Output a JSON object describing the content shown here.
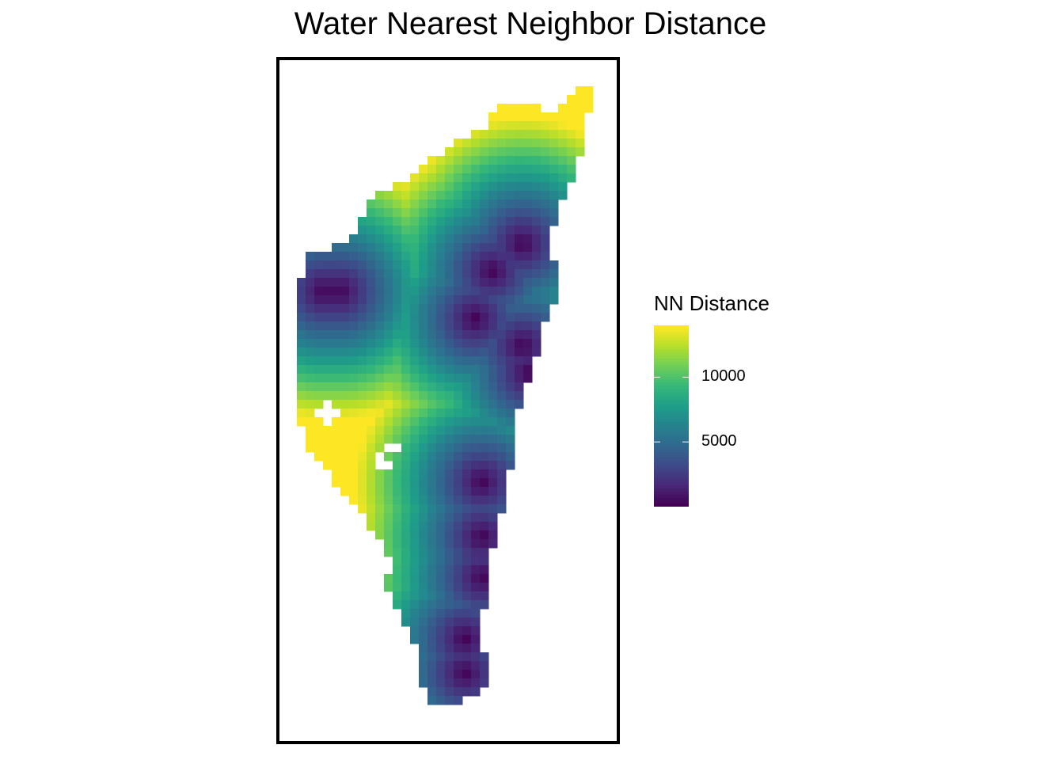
{
  "chart_data": {
    "type": "heatmap",
    "title": "Water Nearest Neighbor Distance",
    "legend": {
      "title": "NN Distance",
      "placement": "right",
      "range": [
        0,
        14000
      ],
      "ticks": [
        {
          "value": 10000,
          "label": "10000"
        },
        {
          "value": 5000,
          "label": "5000"
        }
      ],
      "colormap": "viridis"
    },
    "colors": {
      "viridis": [
        "#440154",
        "#482878",
        "#3e4a89",
        "#31688e",
        "#26828e",
        "#1f9e89",
        "#35b779",
        "#6ece58",
        "#b5de2b",
        "#fde725"
      ],
      "frame": "#000000",
      "background": "#ffffff"
    },
    "distance_field": {
      "description_units": "meters",
      "water_sources": [
        [
          0.13,
          0.34
        ],
        [
          0.18,
          0.34
        ],
        [
          0.63,
          0.31
        ],
        [
          0.72,
          0.27
        ],
        [
          0.58,
          0.38
        ],
        [
          0.72,
          0.42
        ],
        [
          0.74,
          0.46
        ],
        [
          0.6,
          0.62
        ],
        [
          0.6,
          0.7
        ],
        [
          0.6,
          0.76
        ],
        [
          0.55,
          0.85
        ],
        [
          0.55,
          0.9
        ]
      ]
    }
  }
}
